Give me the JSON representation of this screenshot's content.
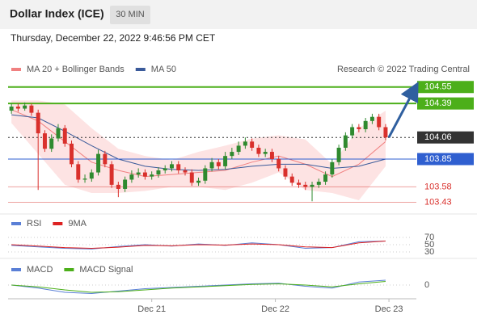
{
  "header": {
    "title": "Dollar Index (ICE)",
    "interval": "30 MIN",
    "timestamp": "Thursday, December 22, 2022 9:46:56 PM CET"
  },
  "chart_data": [
    {
      "type": "candlestick",
      "watermark": "Research © 2022 Trading Central",
      "up_color": "#2f8a2f",
      "down_color": "#d9302c",
      "xlim": [
        -0.5,
        60
      ],
      "ylim": [
        103.34,
        104.65
      ],
      "xticks": [
        {
          "value": 21,
          "label": "Dec 21"
        },
        {
          "value": 39.5,
          "label": "Dec 22"
        },
        {
          "value": 56.5,
          "label": "Dec 23"
        }
      ],
      "candles": [
        [
          104.32,
          104.39,
          104.29,
          104.36
        ],
        [
          104.36,
          104.39,
          104.31,
          104.34
        ],
        [
          104.34,
          104.4,
          104.32,
          104.37
        ],
        [
          104.37,
          104.39,
          104.27,
          104.3
        ],
        [
          104.3,
          104.33,
          103.55,
          104.1
        ],
        [
          104.1,
          104.13,
          103.92,
          103.95
        ],
        [
          103.95,
          104.09,
          103.92,
          104.05
        ],
        [
          104.05,
          104.19,
          104.02,
          104.15
        ],
        [
          104.15,
          104.18,
          103.97,
          104.0
        ],
        [
          104.0,
          104.03,
          103.77,
          103.8
        ],
        [
          103.8,
          103.83,
          103.62,
          103.65
        ],
        [
          103.65,
          103.7,
          103.62,
          103.66
        ],
        [
          103.66,
          103.75,
          103.63,
          103.72
        ],
        [
          103.72,
          103.94,
          103.69,
          103.9
        ],
        [
          103.9,
          103.93,
          103.77,
          103.8
        ],
        [
          103.8,
          103.83,
          103.57,
          103.6
        ],
        [
          103.6,
          103.63,
          103.48,
          103.56
        ],
        [
          103.56,
          103.68,
          103.53,
          103.65
        ],
        [
          103.65,
          103.74,
          103.62,
          103.7
        ],
        [
          103.7,
          103.76,
          103.67,
          103.72
        ],
        [
          103.72,
          103.75,
          103.65,
          103.68
        ],
        [
          103.68,
          103.73,
          103.65,
          103.7
        ],
        [
          103.7,
          103.77,
          103.67,
          103.74
        ],
        [
          103.74,
          103.79,
          103.71,
          103.76
        ],
        [
          103.76,
          103.83,
          103.73,
          103.8
        ],
        [
          103.8,
          103.83,
          103.71,
          103.74
        ],
        [
          103.74,
          103.77,
          103.69,
          103.72
        ],
        [
          103.72,
          103.75,
          103.59,
          103.62
        ],
        [
          103.62,
          103.67,
          103.59,
          103.64
        ],
        [
          103.64,
          103.79,
          103.61,
          103.76
        ],
        [
          103.76,
          103.86,
          103.73,
          103.82
        ],
        [
          103.82,
          103.85,
          103.75,
          103.78
        ],
        [
          103.78,
          103.92,
          103.75,
          103.88
        ],
        [
          103.88,
          103.96,
          103.85,
          103.92
        ],
        [
          103.92,
          104.02,
          103.89,
          103.98
        ],
        [
          103.98,
          104.06,
          103.95,
          104.02
        ],
        [
          104.02,
          104.05,
          103.93,
          103.96
        ],
        [
          103.96,
          103.99,
          103.87,
          103.9
        ],
        [
          103.9,
          103.95,
          103.87,
          103.92
        ],
        [
          103.92,
          103.95,
          103.82,
          103.85
        ],
        [
          103.85,
          103.88,
          103.73,
          103.76
        ],
        [
          103.76,
          103.79,
          103.65,
          103.68
        ],
        [
          103.68,
          103.71,
          103.59,
          103.62
        ],
        [
          103.62,
          103.65,
          103.57,
          103.6
        ],
        [
          103.6,
          103.63,
          103.55,
          103.58
        ],
        [
          103.58,
          103.63,
          103.44,
          103.6
        ],
        [
          103.6,
          103.66,
          103.57,
          103.63
        ],
        [
          103.63,
          103.73,
          103.6,
          103.7
        ],
        [
          103.7,
          103.85,
          103.67,
          103.82
        ],
        [
          103.82,
          103.99,
          103.79,
          103.96
        ],
        [
          103.96,
          104.11,
          103.93,
          104.08
        ],
        [
          104.08,
          104.19,
          104.05,
          104.16
        ],
        [
          104.16,
          104.19,
          104.11,
          104.14
        ],
        [
          104.14,
          104.25,
          104.11,
          104.22
        ],
        [
          104.22,
          104.29,
          104.19,
          104.26
        ],
        [
          104.26,
          104.29,
          104.13,
          104.16
        ],
        [
          104.16,
          104.19,
          104.03,
          104.06
        ]
      ],
      "overlay_x": [
        0,
        4,
        8,
        12,
        16,
        20,
        24,
        28,
        32,
        36,
        40,
        44,
        48,
        52,
        56
      ],
      "overlays": [
        {
          "name": "MA 20 + Bollinger Bands",
          "color": "#f08080",
          "band_color": "#fde3e3",
          "values": [
            104.33,
            104.22,
            104.02,
            103.82,
            103.74,
            103.68,
            103.7,
            103.72,
            103.74,
            103.82,
            103.88,
            103.8,
            103.68,
            103.8,
            104.02
          ],
          "upper": [
            104.42,
            104.42,
            104.38,
            104.15,
            103.95,
            103.88,
            103.84,
            103.92,
            103.98,
            104.05,
            104.08,
            104.04,
            103.8,
            104.15,
            104.32
          ],
          "lower": [
            104.2,
            103.9,
            103.6,
            103.52,
            103.52,
            103.54,
            103.58,
            103.58,
            103.55,
            103.62,
            103.72,
            103.55,
            103.52,
            103.45,
            103.78
          ]
        },
        {
          "name": "MA 50",
          "color": "#3a5a9a",
          "values": [
            104.28,
            104.25,
            104.12,
            103.98,
            103.85,
            103.78,
            103.75,
            103.74,
            103.75,
            103.78,
            103.8,
            103.8,
            103.76,
            103.78,
            103.85
          ]
        }
      ],
      "levels": [
        {
          "value": 104.55,
          "color": "#4caf1a"
        },
        {
          "value": 104.39,
          "color": "#4caf1a"
        },
        {
          "value": 104.06,
          "color": "#333333"
        },
        {
          "value": 103.85,
          "color": "#2f5fd0"
        },
        {
          "value": 103.58,
          "color": "#d9302c"
        },
        {
          "value": 103.43,
          "color": "#d9302c"
        }
      ]
    },
    {
      "type": "line",
      "xlim": [
        -0.5,
        60
      ],
      "ylim": [
        20,
        80
      ],
      "yticks": [
        70,
        50,
        30
      ],
      "x": [
        0,
        4,
        8,
        12,
        16,
        20,
        24,
        28,
        32,
        36,
        40,
        44,
        48,
        52,
        56
      ],
      "series": [
        {
          "name": "RSI",
          "color": "#5a7fd6",
          "values": [
            48,
            44,
            40,
            38,
            45,
            50,
            46,
            52,
            48,
            55,
            50,
            40,
            42,
            58,
            60
          ]
        },
        {
          "name": "9MA",
          "color": "#dd2222",
          "values": [
            50,
            46,
            42,
            40,
            43,
            48,
            47,
            50,
            49,
            52,
            50,
            44,
            42,
            55,
            60
          ]
        }
      ]
    },
    {
      "type": "line",
      "xlim": [
        -0.5,
        60
      ],
      "ylim": [
        -0.2,
        0.12
      ],
      "yticks": [
        0
      ],
      "x": [
        0,
        4,
        8,
        12,
        16,
        20,
        24,
        28,
        32,
        36,
        40,
        44,
        48,
        52,
        56
      ],
      "series": [
        {
          "name": "MACD",
          "color": "#5a7fd6",
          "values": [
            0.0,
            -0.05,
            -0.12,
            -0.14,
            -0.1,
            -0.06,
            -0.04,
            -0.02,
            0.0,
            0.02,
            0.03,
            -0.02,
            -0.05,
            0.05,
            0.08
          ]
        },
        {
          "name": "MACD Signal",
          "color": "#4caf1a",
          "values": [
            0.0,
            -0.03,
            -0.08,
            -0.12,
            -0.11,
            -0.08,
            -0.05,
            -0.03,
            -0.01,
            0.01,
            0.02,
            0.0,
            -0.03,
            0.02,
            0.06
          ]
        }
      ]
    }
  ]
}
